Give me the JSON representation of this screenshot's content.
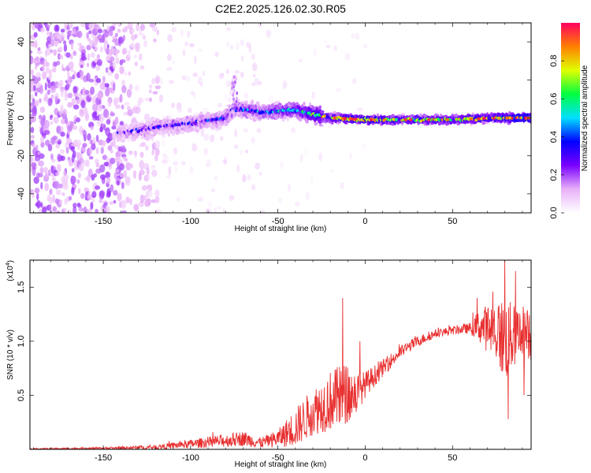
{
  "figure_title": "C2E2.2025.126.02.30.R05",
  "chart_data": [
    {
      "type": "heatmap",
      "title": "C2E2.2025.126.02.30.R05",
      "xlabel": "Height of straight line (km)",
      "ylabel": "Frequency (Hz)",
      "xlim": [
        -192,
        95
      ],
      "ylim": [
        -50,
        50
      ],
      "x_ticks": [
        -150,
        -100,
        -50,
        0,
        50
      ],
      "y_ticks": [
        -40,
        -20,
        0,
        20,
        40
      ],
      "colorbar": {
        "label": "Normalized spectral amplitude",
        "range": [
          0,
          1
        ],
        "ticks": [
          0.0,
          0.2,
          0.4,
          0.6,
          0.8
        ],
        "colormap": [
          "#ffffff",
          "#e8b0f8",
          "#7a00ff",
          "#0000ff",
          "#00e0ff",
          "#00ff40",
          "#e0ff00",
          "#ff8000",
          "#ff0060"
        ]
      },
      "ridge": [
        {
          "x": -140,
          "freq": -8,
          "amp": 0.25
        },
        {
          "x": -120,
          "freq": -5,
          "amp": 0.3
        },
        {
          "x": -100,
          "freq": -3,
          "amp": 0.3
        },
        {
          "x": -80,
          "freq": 0,
          "amp": 0.35
        },
        {
          "x": -75,
          "freq": 5,
          "amp": 0.35
        },
        {
          "x": -60,
          "freq": 3,
          "amp": 0.4
        },
        {
          "x": -40,
          "freq": 4,
          "amp": 0.5
        },
        {
          "x": -30,
          "freq": 2,
          "amp": 0.6
        },
        {
          "x": -20,
          "freq": 0,
          "amp": 0.65
        },
        {
          "x": 0,
          "freq": -1,
          "amp": 0.7
        },
        {
          "x": 25,
          "freq": -1,
          "amp": 0.6
        },
        {
          "x": 50,
          "freq": -1,
          "amp": 0.6
        },
        {
          "x": 75,
          "freq": 0,
          "amp": 0.7
        },
        {
          "x": 95,
          "freq": 0,
          "amp": 0.8
        }
      ]
    },
    {
      "type": "line",
      "xlabel": "Height of straight line (km)",
      "ylabel": "SNR (10 * v/v)",
      "y_multiplier": "(x10",
      "y_multiplier_exp": "4",
      "xlim": [
        -192,
        95
      ],
      "ylim": [
        0,
        1.75
      ],
      "x_ticks": [
        -150,
        -100,
        -50,
        0,
        50
      ],
      "y_ticks": [
        0.5,
        1.0,
        1.5
      ],
      "color": "#e83030",
      "envelope_x": [
        -192,
        -150,
        -120,
        -100,
        -80,
        -70,
        -60,
        -50,
        -40,
        -30,
        -20,
        -12,
        -5,
        0,
        10,
        20,
        30,
        40,
        50,
        60,
        65,
        75,
        80,
        85,
        90,
        95
      ],
      "envelope_mean": [
        0.005,
        0.01,
        0.02,
        0.05,
        0.08,
        0.1,
        0.06,
        0.1,
        0.2,
        0.35,
        0.45,
        0.5,
        0.52,
        0.6,
        0.75,
        0.9,
        1.0,
        1.07,
        1.1,
        1.12,
        1.14,
        1.1,
        1.0,
        1.05,
        1.1,
        1.05
      ],
      "envelope_spread": [
        0.005,
        0.01,
        0.02,
        0.04,
        0.06,
        0.07,
        0.05,
        0.08,
        0.18,
        0.22,
        0.28,
        0.3,
        0.2,
        0.12,
        0.08,
        0.06,
        0.05,
        0.04,
        0.04,
        0.05,
        0.15,
        0.3,
        0.4,
        0.3,
        0.25,
        0.25
      ],
      "peaks": [
        {
          "x": -13,
          "y": 1.4
        },
        {
          "x": -3,
          "y": 1.0
        },
        {
          "x": 40,
          "y": 1.1
        },
        {
          "x": 64,
          "y": 1.4
        },
        {
          "x": 80,
          "y": 1.75
        },
        {
          "x": 82,
          "y": 0.28
        },
        {
          "x": 86,
          "y": 1.65
        },
        {
          "x": 91,
          "y": 0.5
        }
      ]
    }
  ]
}
